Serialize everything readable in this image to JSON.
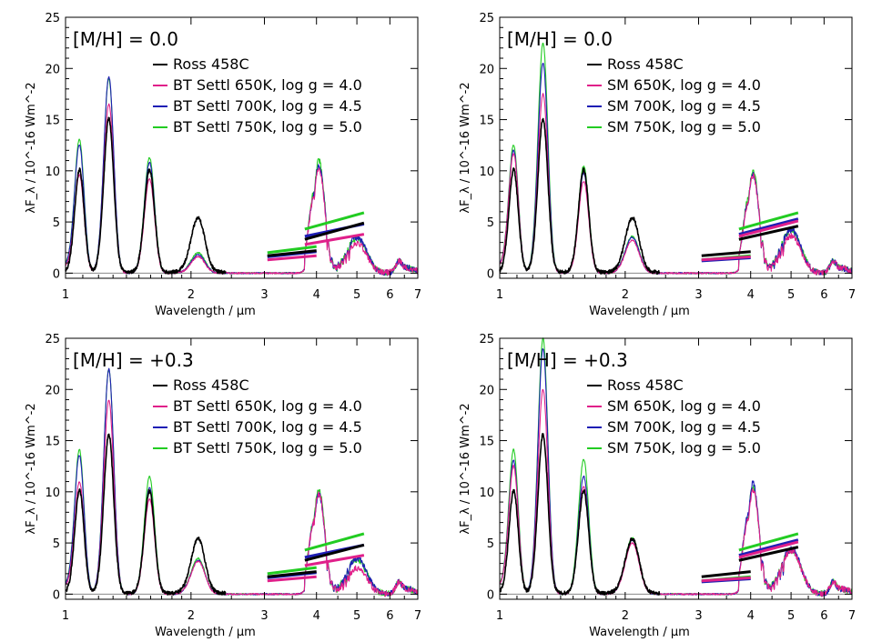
{
  "colors": {
    "Ross 458C": "#000000",
    "650K": "#e0208a",
    "700K": "#1e1eb4",
    "750K": "#22cc22",
    "axis": "#000000",
    "baseline": "#888888"
  },
  "chart_data": [
    {
      "type": "line",
      "xlabel": "Wavelength / μm",
      "ylabel": "λF_λ / 10^-16 Wm^-2",
      "xscale": "log",
      "xlim": [
        1,
        7
      ],
      "ylim": [
        -0.5,
        25
      ],
      "xticks": [
        1,
        2,
        3,
        4,
        5,
        6,
        7
      ],
      "yticks": [
        0,
        5,
        10,
        15,
        20,
        25
      ],
      "metallicity": "[M/H] = 0.0",
      "legend_position": "top-left",
      "series": [
        {
          "name": "Ross 458C",
          "color_key": "Ross 458C",
          "peaks": [
            [
              1.08,
              10
            ],
            [
              1.27,
              15
            ],
            [
              1.59,
              10
            ],
            [
              2.08,
              5.3
            ],
            [
              4.05,
              3.6
            ],
            [
              5.0,
              3.8
            ]
          ],
          "photometry": [
            [
              3.05,
              4.0,
              1.7,
              2.2
            ],
            [
              3.75,
              5.2,
              3.3,
              4.9
            ]
          ]
        },
        {
          "name": "BT Settl 650K, log g = 4.0",
          "color_key": "650K",
          "peaks": [
            [
              1.08,
              9.2
            ],
            [
              1.27,
              16.5
            ],
            [
              1.59,
              9.2
            ],
            [
              2.08,
              1.6
            ],
            [
              4.05,
              10.3
            ],
            [
              5.0,
              2.9
            ]
          ],
          "photometry": [
            [
              3.05,
              4.0,
              1.3,
              1.7
            ],
            [
              3.75,
              5.2,
              2.8,
              3.8
            ]
          ]
        },
        {
          "name": "BT Settl 700K, log g = 4.5",
          "color_key": "700K",
          "peaks": [
            [
              1.08,
              12
            ],
            [
              1.27,
              19.2
            ],
            [
              1.59,
              10.8
            ],
            [
              2.08,
              1.8
            ],
            [
              4.05,
              10.6
            ],
            [
              5.0,
              3.5
            ]
          ],
          "photometry": [
            [
              3.05,
              4.0,
              1.6,
              2.1
            ],
            [
              3.75,
              5.2,
              3.6,
              4.8
            ]
          ]
        },
        {
          "name": "BT Settl 750K, log g = 5.0",
          "color_key": "750K",
          "peaks": [
            [
              1.08,
              12.5
            ],
            [
              1.27,
              19
            ],
            [
              1.59,
              11.3
            ],
            [
              2.08,
              2
            ],
            [
              4.05,
              11
            ],
            [
              5.0,
              3.4
            ]
          ],
          "photometry": [
            [
              3.05,
              4.0,
              2.0,
              2.6
            ],
            [
              3.75,
              5.2,
              4.3,
              5.9
            ]
          ]
        }
      ]
    },
    {
      "type": "line",
      "xlabel": "Wavelength / μm",
      "ylabel": "λF_λ / 10^-16 Wm^-2",
      "xscale": "log",
      "xlim": [
        1,
        7
      ],
      "ylim": [
        -0.5,
        25
      ],
      "xticks": [
        1,
        2,
        3,
        4,
        5,
        6,
        7
      ],
      "yticks": [
        0,
        5,
        10,
        15,
        20,
        25
      ],
      "metallicity": "[M/H] = 0.0",
      "legend_position": "top-left",
      "series": [
        {
          "name": "Ross 458C",
          "color_key": "Ross 458C",
          "peaks": [
            [
              1.08,
              10
            ],
            [
              1.27,
              15
            ],
            [
              1.59,
              10
            ],
            [
              2.08,
              5.3
            ],
            [
              4.05,
              3.6
            ],
            [
              5.0,
              3.8
            ]
          ],
          "photometry": [
            [
              3.05,
              4.0,
              1.7,
              2.1
            ],
            [
              3.75,
              5.2,
              3.3,
              4.6
            ]
          ]
        },
        {
          "name": "SM 650K, log g = 4.0",
          "color_key": "650K",
          "peaks": [
            [
              1.08,
              11.2
            ],
            [
              1.27,
              17.5
            ],
            [
              1.59,
              9
            ],
            [
              2.08,
              3.2
            ],
            [
              4.05,
              9.5
            ],
            [
              5.0,
              3.6
            ]
          ],
          "photometry": [
            [
              3.05,
              4.0,
              1.3,
              1.6
            ],
            [
              3.75,
              5.2,
              3.6,
              5.1
            ]
          ]
        },
        {
          "name": "SM 700K, log g = 4.5",
          "color_key": "700K",
          "peaks": [
            [
              1.08,
              11.5
            ],
            [
              1.27,
              20.5
            ],
            [
              1.59,
              9.8
            ],
            [
              2.08,
              3.5
            ],
            [
              4.05,
              9.6
            ],
            [
              5.0,
              4.2
            ]
          ],
          "photometry": [
            [
              3.05,
              4.0,
              1.2,
              1.5
            ],
            [
              3.75,
              5.2,
              3.8,
              5.3
            ]
          ]
        },
        {
          "name": "SM 750K, log g = 5.0",
          "color_key": "750K",
          "peaks": [
            [
              1.08,
              12
            ],
            [
              1.27,
              22.5
            ],
            [
              1.59,
              10.5
            ],
            [
              2.08,
              3.6
            ],
            [
              4.05,
              10
            ],
            [
              5.0,
              4.2
            ]
          ],
          "photometry": [
            [
              3.05,
              4.0,
              1.3,
              1.7
            ],
            [
              3.75,
              5.2,
              4.3,
              5.9
            ]
          ]
        }
      ]
    },
    {
      "type": "line",
      "xlabel": "Wavelength / μm",
      "ylabel": "λF_λ / 10^-16 Wm^-2",
      "xscale": "log",
      "xlim": [
        1,
        7
      ],
      "ylim": [
        -0.5,
        25
      ],
      "xticks": [
        1,
        2,
        3,
        4,
        5,
        6,
        7
      ],
      "yticks": [
        0,
        5,
        10,
        15,
        20,
        25
      ],
      "metallicity": "[M/H] = +0.3",
      "legend_position": "top-left",
      "series": [
        {
          "name": "Ross 458C",
          "color_key": "Ross 458C",
          "peaks": [
            [
              1.08,
              10
            ],
            [
              1.27,
              15.5
            ],
            [
              1.59,
              10
            ],
            [
              2.08,
              5.3
            ],
            [
              4.05,
              3.6
            ],
            [
              5.0,
              3.6
            ]
          ],
          "photometry": [
            [
              3.05,
              4.0,
              1.7,
              2.2
            ],
            [
              3.75,
              5.2,
              3.3,
              4.8
            ]
          ]
        },
        {
          "name": "BT Settl 650K, log g = 4.0",
          "color_key": "650K",
          "peaks": [
            [
              1.08,
              10.5
            ],
            [
              1.27,
              19
            ],
            [
              1.59,
              9.3
            ],
            [
              2.08,
              3.2
            ],
            [
              4.05,
              9.8
            ],
            [
              5.0,
              2.5
            ]
          ],
          "photometry": [
            [
              3.05,
              4.0,
              1.3,
              1.7
            ],
            [
              3.75,
              5.2,
              2.8,
              3.8
            ]
          ]
        },
        {
          "name": "BT Settl 700K, log g = 4.5",
          "color_key": "700K",
          "peaks": [
            [
              1.08,
              13
            ],
            [
              1.27,
              22
            ],
            [
              1.59,
              10.4
            ],
            [
              2.08,
              3.3
            ],
            [
              4.05,
              9.7
            ],
            [
              5.0,
              3.5
            ]
          ],
          "photometry": [
            [
              3.05,
              4.0,
              1.6,
              2.1
            ],
            [
              3.75,
              5.2,
              3.6,
              4.8
            ]
          ]
        },
        {
          "name": "BT Settl 750K, log g = 5.0",
          "color_key": "750K",
          "peaks": [
            [
              1.08,
              13.5
            ],
            [
              1.27,
              22
            ],
            [
              1.59,
              11.5
            ],
            [
              2.08,
              3.5
            ],
            [
              4.05,
              10.2
            ],
            [
              5.0,
              3.4
            ]
          ],
          "photometry": [
            [
              3.05,
              4.0,
              2.0,
              2.6
            ],
            [
              3.75,
              5.2,
              4.3,
              5.9
            ]
          ]
        }
      ]
    },
    {
      "type": "line",
      "xlabel": "Wavelength / μm",
      "ylabel": "λF_λ / 10^-16 Wm^-2",
      "xscale": "log",
      "xlim": [
        1,
        7
      ],
      "ylim": [
        -0.5,
        25
      ],
      "xticks": [
        1,
        2,
        3,
        4,
        5,
        6,
        7
      ],
      "yticks": [
        0,
        5,
        10,
        15,
        20,
        25
      ],
      "metallicity": "[M/H] = +0.3",
      "legend_position": "top-left",
      "series": [
        {
          "name": "Ross 458C",
          "color_key": "Ross 458C",
          "peaks": [
            [
              1.08,
              10
            ],
            [
              1.27,
              15.5
            ],
            [
              1.59,
              10
            ],
            [
              2.08,
              5.3
            ],
            [
              4.05,
              3.6
            ],
            [
              5.0,
              3.6
            ]
          ],
          "photometry": [
            [
              3.05,
              4.0,
              1.7,
              2.2
            ],
            [
              3.75,
              5.2,
              3.3,
              4.6
            ]
          ]
        },
        {
          "name": "SM 650K, log g = 4.0",
          "color_key": "650K",
          "peaks": [
            [
              1.08,
              12
            ],
            [
              1.27,
              20
            ],
            [
              1.59,
              10.5
            ],
            [
              2.08,
              5
            ],
            [
              4.05,
              10.2
            ],
            [
              5.0,
              4.2
            ]
          ],
          "photometry": [
            [
              3.05,
              4.0,
              1.3,
              1.6
            ],
            [
              3.75,
              5.2,
              3.6,
              5.1
            ]
          ]
        },
        {
          "name": "SM 700K, log g = 4.5",
          "color_key": "700K",
          "peaks": [
            [
              1.08,
              12.5
            ],
            [
              1.27,
              24
            ],
            [
              1.59,
              11.5
            ],
            [
              2.08,
              5.3
            ],
            [
              4.05,
              10.8
            ],
            [
              5.0,
              4.4
            ]
          ],
          "photometry": [
            [
              3.05,
              4.0,
              1.2,
              1.5
            ],
            [
              3.75,
              5.2,
              3.8,
              5.3
            ]
          ]
        },
        {
          "name": "SM 750K, log g = 5.0",
          "color_key": "750K",
          "peaks": [
            [
              1.08,
              13.5
            ],
            [
              1.27,
              25
            ],
            [
              1.59,
              13.2
            ],
            [
              2.08,
              5.5
            ],
            [
              4.05,
              10.5
            ],
            [
              5.0,
              4.3
            ]
          ],
          "photometry": [
            [
              3.05,
              4.0,
              1.3,
              1.7
            ],
            [
              3.75,
              5.2,
              4.3,
              5.9
            ]
          ]
        }
      ]
    }
  ]
}
